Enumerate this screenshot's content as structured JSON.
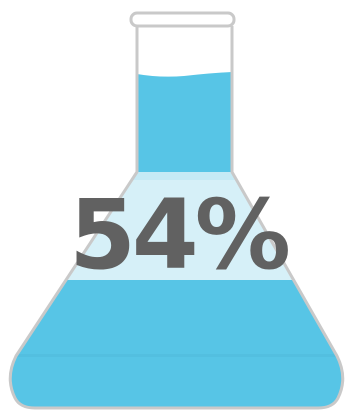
{
  "infographic": {
    "percent_label": "54%",
    "fill_level_percent": 54
  },
  "colors": {
    "liquid": "#57c5e6",
    "highlight": "#d6f0f8",
    "glass_outline": "#c9c9c9",
    "text": "#616161"
  }
}
